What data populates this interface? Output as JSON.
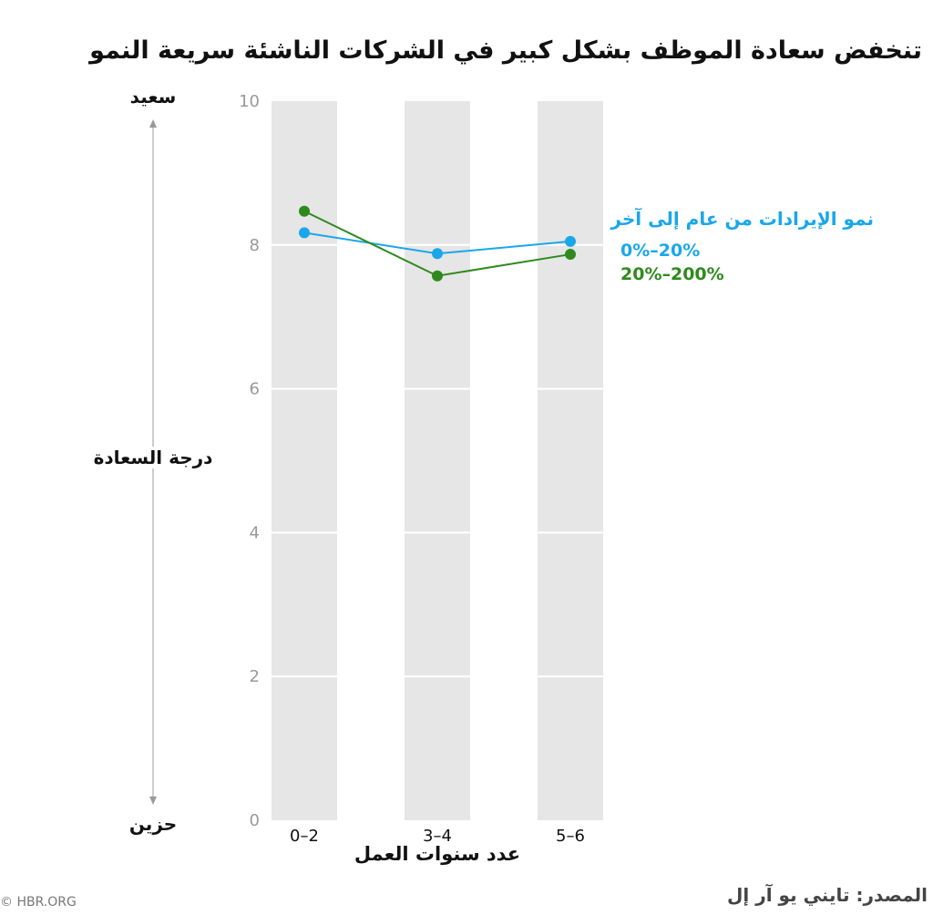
{
  "title": "تنخفض سعادة الموظف بشكل كبير في الشركات الناشئة سريعة النمو",
  "y_axis": {
    "label": "درجة السعادة",
    "top_label": "سعيد",
    "bottom_label": "حزين"
  },
  "x_axis_label": "عدد سنوات العمل",
  "legend_title": "نمو الإيرادات من عام إلى آخر",
  "source": "المصدر: تايني يو آر إل",
  "credit": "© HBR.ORG",
  "colors": {
    "series_low": "#1aa7ea",
    "series_high": "#2f8a1e",
    "band": "#e6e6e6",
    "legend_title": "#1aa7ea"
  },
  "chart_data": {
    "type": "line",
    "categories": [
      "0–2",
      "3–4",
      "5–6"
    ],
    "series": [
      {
        "name": "0%–20%",
        "values": [
          8.17,
          7.88,
          8.05
        ]
      },
      {
        "name": "20%–200%",
        "values": [
          8.47,
          7.57,
          7.87
        ]
      }
    ],
    "yticks": [
      0,
      2,
      4,
      6,
      8,
      10
    ],
    "ylim": [
      0,
      10
    ],
    "grid": true,
    "legend_position": "right"
  }
}
